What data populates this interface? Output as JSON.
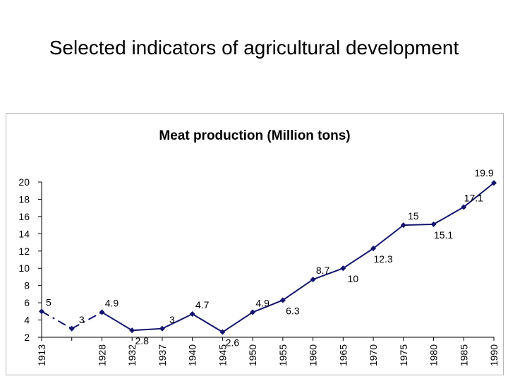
{
  "slide": {
    "title": "Selected indicators of agricultural development"
  },
  "chart_data": {
    "type": "line",
    "title": "Meat production (Million tons)",
    "xlabel": "",
    "ylabel": "",
    "ylim": [
      2,
      20
    ],
    "yticks": [
      2,
      4,
      6,
      8,
      10,
      12,
      14,
      16,
      18,
      20
    ],
    "grid": false,
    "legend": "none",
    "color": "#14146e",
    "x": [
      "1913",
      "",
      "1928",
      "1932",
      "1937",
      "1940",
      "1945",
      "1950",
      "1955",
      "1960",
      "1965",
      "1970",
      "1975",
      "1980",
      "1985",
      "1990"
    ],
    "values": [
      5,
      3,
      4.9,
      2.8,
      3,
      4.7,
      2.6,
      4.9,
      6.3,
      8.7,
      10,
      12.3,
      15,
      15.1,
      17.1,
      19.9
    ],
    "labels": [
      "5",
      "3",
      "4.9",
      "2.8",
      "3",
      "4.7",
      "2.6",
      "4.9",
      "6.3",
      "8.7",
      "10",
      "12.3",
      "15",
      "15.1",
      "17.1",
      "19.9"
    ],
    "label_position": [
      "above",
      "above",
      "above",
      "below",
      "above",
      "above",
      "below",
      "above",
      "below",
      "above",
      "below",
      "below",
      "above",
      "below",
      "above",
      "above"
    ],
    "dashed_segments": [
      0,
      1
    ]
  }
}
